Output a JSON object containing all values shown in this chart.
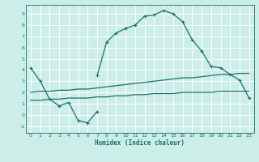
{
  "xlabel": "Humidex (Indice chaleur)",
  "ylabel": "",
  "bg_color": "#cceee8",
  "grid_color": "#ffffff",
  "line_color": "#1a7070",
  "xlim": [
    -0.5,
    23.5
  ],
  "ylim": [
    -1.6,
    9.8
  ],
  "xticks": [
    0,
    1,
    2,
    3,
    4,
    5,
    6,
    7,
    8,
    9,
    10,
    11,
    12,
    13,
    14,
    15,
    16,
    17,
    18,
    19,
    20,
    21,
    22,
    23
  ],
  "yticks": [
    -1,
    0,
    1,
    2,
    3,
    4,
    5,
    6,
    7,
    8,
    9
  ],
  "line1_x": [
    0,
    1,
    2,
    3,
    4,
    5,
    6,
    7
  ],
  "line1_y": [
    4.2,
    3.0,
    1.4,
    0.8,
    1.1,
    -0.5,
    -0.7,
    0.3
  ],
  "line2_x": [
    7,
    8,
    9,
    10,
    11,
    12,
    13,
    14,
    15,
    16,
    17,
    18,
    19,
    20,
    21,
    22,
    23
  ],
  "line2_y": [
    3.5,
    6.5,
    7.3,
    7.7,
    8.0,
    8.8,
    8.9,
    9.3,
    9.0,
    8.3,
    6.7,
    5.7,
    4.3,
    4.2,
    3.6,
    3.1,
    1.5
  ],
  "line3_x": [
    0,
    1,
    2,
    3,
    4,
    5,
    6,
    7,
    8,
    9,
    10,
    11,
    12,
    13,
    14,
    15,
    16,
    17,
    18,
    19,
    20,
    21,
    22,
    23
  ],
  "line3_y": [
    2.0,
    2.1,
    2.1,
    2.2,
    2.2,
    2.3,
    2.3,
    2.4,
    2.5,
    2.6,
    2.7,
    2.8,
    2.9,
    3.0,
    3.1,
    3.2,
    3.3,
    3.3,
    3.4,
    3.5,
    3.6,
    3.6,
    3.7,
    3.7
  ],
  "line4_x": [
    0,
    1,
    2,
    3,
    4,
    5,
    6,
    7,
    8,
    9,
    10,
    11,
    12,
    13,
    14,
    15,
    16,
    17,
    18,
    19,
    20,
    21,
    22,
    23
  ],
  "line4_y": [
    1.3,
    1.3,
    1.4,
    1.4,
    1.5,
    1.5,
    1.5,
    1.6,
    1.6,
    1.7,
    1.7,
    1.8,
    1.8,
    1.9,
    1.9,
    1.9,
    2.0,
    2.0,
    2.0,
    2.0,
    2.1,
    2.1,
    2.1,
    2.1
  ]
}
